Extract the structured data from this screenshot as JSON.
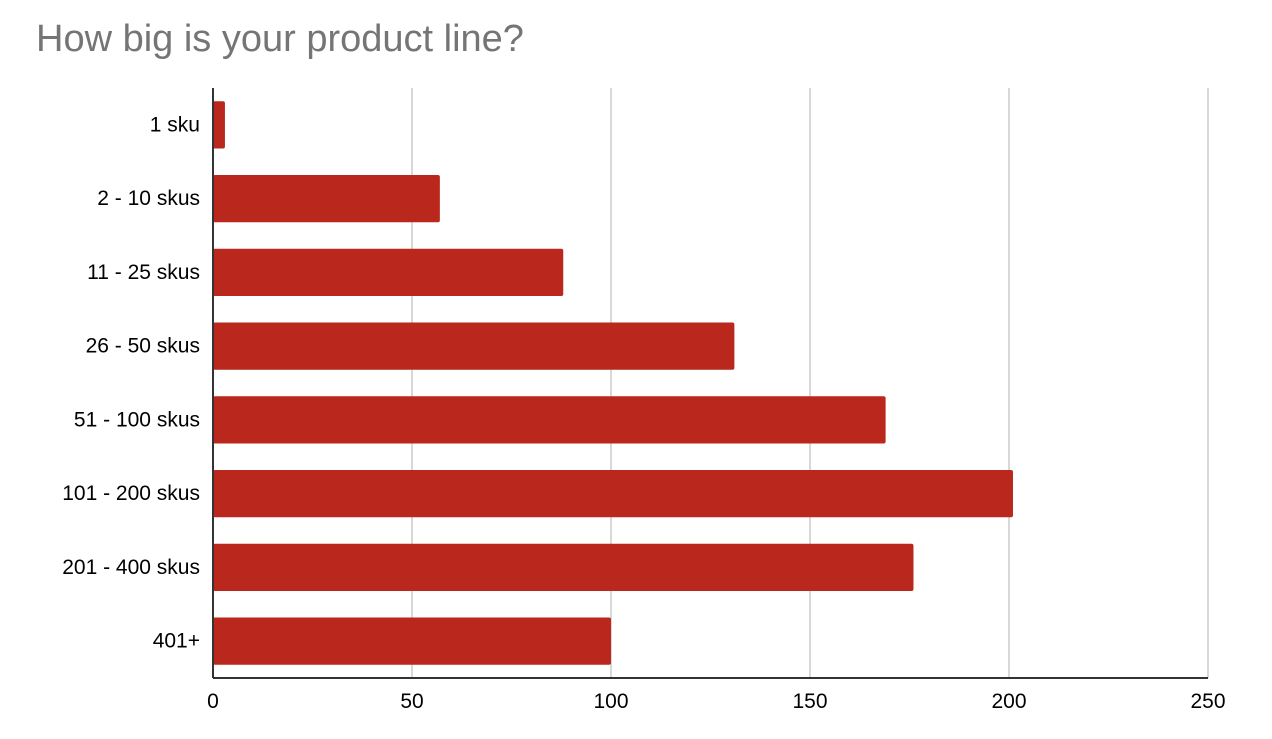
{
  "chart_data": {
    "type": "bar",
    "orientation": "horizontal",
    "title": "How big is your product line?",
    "xlabel": "",
    "ylabel": "",
    "categories": [
      "1 sku",
      "2 - 10 skus",
      "11 - 25 skus",
      "26 - 50 skus",
      "51 - 100 skus",
      "101 - 200 skus",
      "201 - 400 skus",
      "401+"
    ],
    "values": [
      3,
      57,
      88,
      131,
      169,
      201,
      176,
      100
    ],
    "xlim": [
      0,
      250
    ],
    "xticks": [
      "0",
      "50",
      "100",
      "150",
      "200",
      "250"
    ],
    "xtick_values": [
      0,
      50,
      100,
      150,
      200,
      250
    ],
    "grid": "vertical",
    "legend": "none",
    "bar_color": "#b9271d",
    "grid_color": "#cccccc",
    "axis_color": "#333333"
  }
}
